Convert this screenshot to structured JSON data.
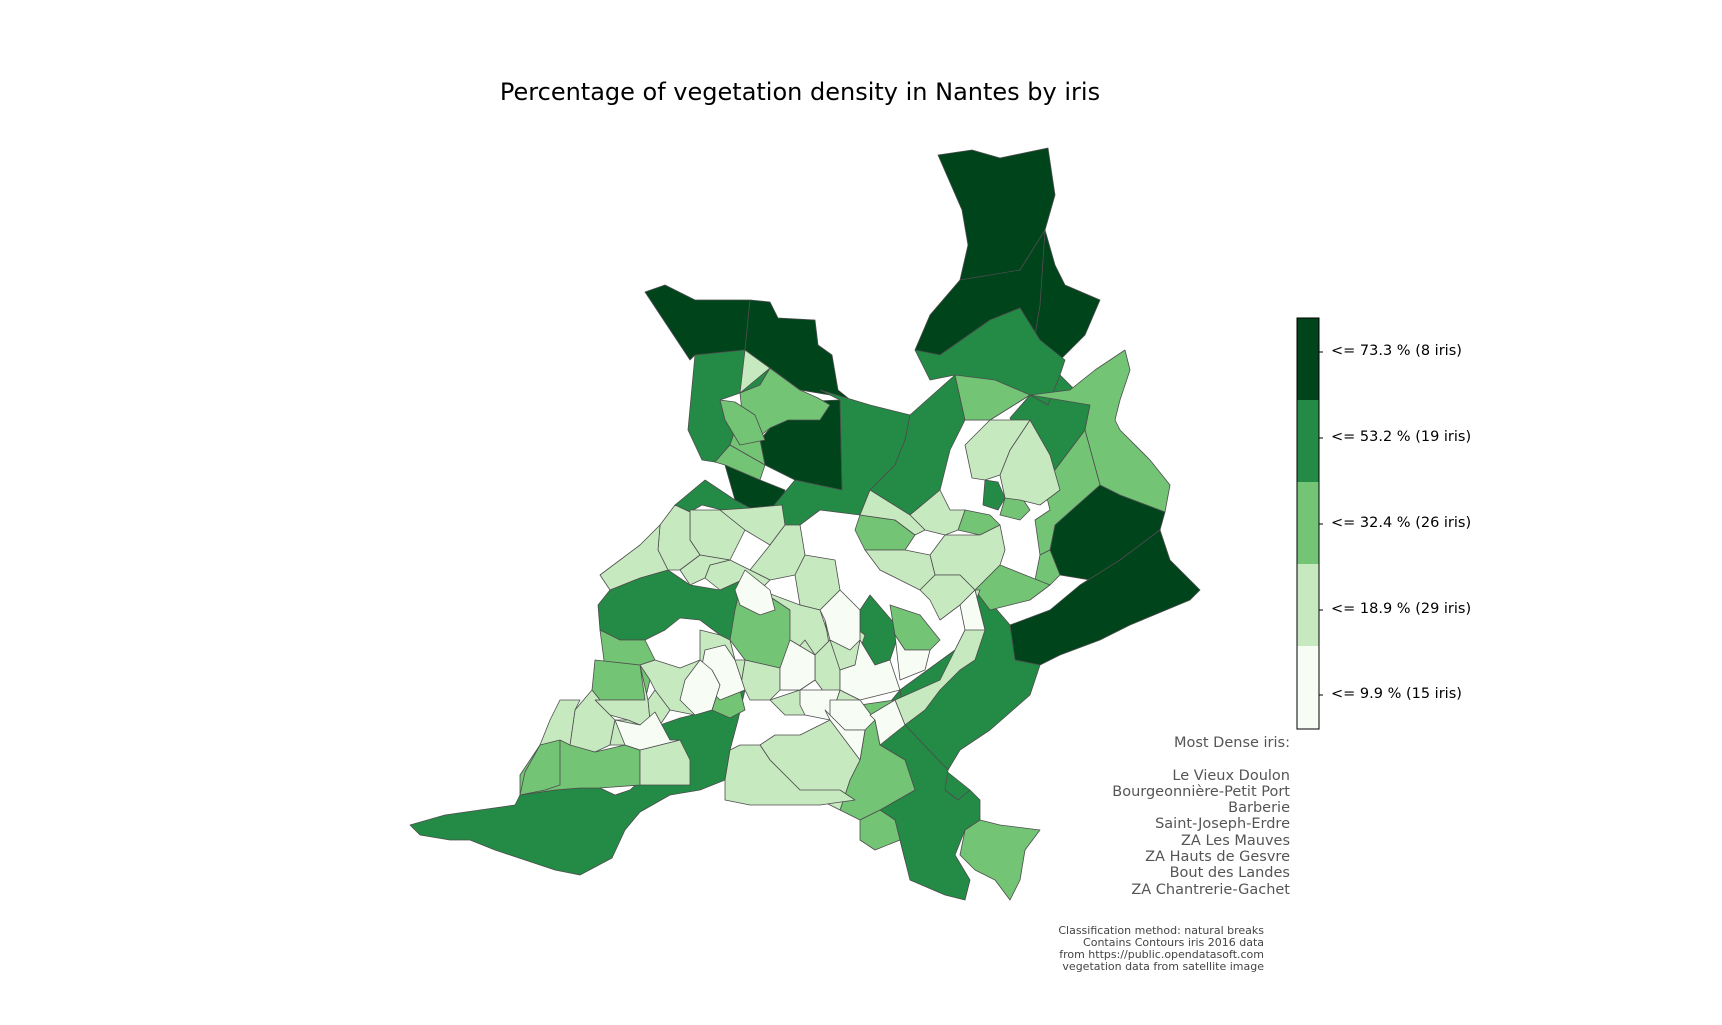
{
  "title": "Percentage of vegetation density in Nantes by iris",
  "colors": {
    "class1": "#f7fcf5",
    "class2": "#c7e9c0",
    "class3": "#74c476",
    "class4": "#238b45",
    "class5": "#00441b",
    "border": "#4d4d4d"
  },
  "legend": {
    "classes": [
      {
        "label": "<= 73.3 % (8 iris)",
        "max": 73.3,
        "count": 8,
        "color": "#00441b"
      },
      {
        "label": "<= 53.2 % (19 iris)",
        "max": 53.2,
        "count": 19,
        "color": "#238b45"
      },
      {
        "label": "<= 32.4 % (26 iris)",
        "max": 32.4,
        "count": 26,
        "color": "#74c476"
      },
      {
        "label": "<= 18.9 % (29 iris)",
        "max": 18.9,
        "count": 29,
        "color": "#c7e9c0"
      },
      {
        "label": "<= 9.9 % (15 iris)",
        "max": 9.9,
        "count": 15,
        "color": "#f7fcf5"
      }
    ]
  },
  "most_dense": {
    "heading": "Most Dense iris:",
    "names": [
      "Le Vieux Doulon",
      "Bourgeonnière-Petit Port",
      "Barberie",
      "Saint-Joseph-Erdre",
      "ZA Les Mauves",
      "ZA Hauts de Gesvre",
      "Bout des Landes",
      "ZA Chantrerie-Gachet"
    ]
  },
  "credits": {
    "line1": "Classification method: natural breaks",
    "line2": "Contains Contours iris 2016 data",
    "line3": "from https://public.opendatasoft.com",
    "line4": "vegetation data from satellite image"
  }
}
